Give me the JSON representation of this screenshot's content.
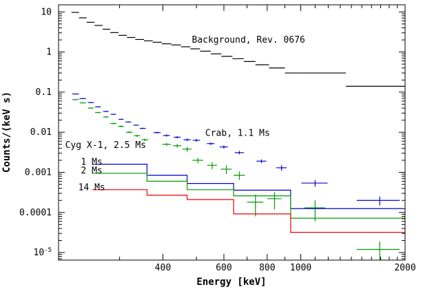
{
  "chart_data": {
    "type": "line",
    "xlabel": "Energy [keV]",
    "ylabel": "Counts/(keV s)",
    "xscale": "log",
    "yscale": "log",
    "xlim": [
      200,
      2000
    ],
    "ylim": [
      6.5e-06,
      15
    ],
    "grid": false,
    "x_ticks": [
      {
        "value": 400,
        "label": "400"
      },
      {
        "value": 600,
        "label": "600"
      },
      {
        "value": 800,
        "label": "800"
      },
      {
        "value": 1000,
        "label": "1000"
      },
      {
        "value": 2000,
        "label": "2000"
      }
    ],
    "y_ticks": [
      {
        "value": 10,
        "label": "10"
      },
      {
        "value": 1,
        "label": "1"
      },
      {
        "value": 0.1,
        "label": "0.1"
      },
      {
        "value": 0.01,
        "label": "0.01"
      },
      {
        "value": 0.001,
        "label": "0.001"
      },
      {
        "value": 0.0001,
        "label": "0.0001"
      },
      {
        "value": 1e-05,
        "label": "10",
        "exp": "-5"
      }
    ],
    "annotations": [
      {
        "text": "Background, Rev. 0676",
        "x": 485,
        "y": 2.0,
        "color": "#000000"
      },
      {
        "text": "Crab, 1.1 Ms",
        "x": 530,
        "y": 0.0095,
        "color": "#000000"
      },
      {
        "text": "Cyg X-1, 2.5 Ms",
        "x": 209,
        "y": 0.0048,
        "color": "#000000"
      },
      {
        "text": "1 Ms",
        "x": 232,
        "y": 0.0018,
        "color": "#000000"
      },
      {
        "text": "2 Ms",
        "x": 232,
        "y": 0.0011,
        "color": "#000000"
      },
      {
        "text": "14 Ms",
        "x": 228,
        "y": 0.00042,
        "color": "#000000"
      }
    ],
    "series": [
      {
        "style": "bins",
        "color": "#000000",
        "bins": [
          [
            218,
            229,
            9.7
          ],
          [
            229,
            241,
            7.1
          ],
          [
            241,
            254,
            5.5
          ],
          [
            254,
            268,
            4.6
          ],
          [
            268,
            282,
            3.7
          ],
          [
            282,
            298,
            3.05
          ],
          [
            298,
            315,
            2.6
          ],
          [
            315,
            333,
            2.3
          ],
          [
            333,
            353,
            2.05
          ],
          [
            353,
            374,
            1.9
          ],
          [
            374,
            397,
            1.75
          ],
          [
            397,
            423,
            1.6
          ],
          [
            423,
            451,
            1.5
          ],
          [
            451,
            480,
            1.35
          ],
          [
            480,
            512,
            1.2
          ],
          [
            512,
            550,
            1.05
          ],
          [
            550,
            590,
            0.9
          ],
          [
            590,
            635,
            0.78
          ],
          [
            635,
            685,
            0.68
          ],
          [
            685,
            740,
            0.58
          ],
          [
            740,
            810,
            0.48
          ],
          [
            810,
            900,
            0.4
          ],
          [
            900,
            1000,
            0.3
          ],
          [
            1000,
            1350,
            0.3
          ],
          [
            1350,
            2000,
            0.14
          ]
        ]
      },
      {
        "style": "errorbars",
        "color": "#0000cc",
        "points": [
          [
            224,
            0.09,
            5,
            0.002
          ],
          [
            235,
            0.069,
            5,
            0.002
          ],
          [
            248,
            0.055,
            5,
            0.0015
          ],
          [
            260,
            0.043,
            5,
            0.0012
          ],
          [
            274,
            0.033,
            5,
            0.001
          ],
          [
            288,
            0.028,
            5,
            0.0008
          ],
          [
            303,
            0.021,
            5,
            0.0006
          ],
          [
            318,
            0.018,
            6,
            0.0005
          ],
          [
            335,
            0.015,
            6,
            0.0004
          ],
          [
            350,
            0.0125,
            7,
            0.0004
          ],
          [
            385,
            0.0098,
            9,
            0.0005
          ],
          [
            410,
            0.0083,
            9,
            0.0005
          ],
          [
            440,
            0.0075,
            10,
            0.0005
          ],
          [
            470,
            0.0065,
            11,
            0.0005
          ],
          [
            500,
            0.0063,
            12,
            0.0005
          ],
          [
            550,
            0.0052,
            14,
            0.0004
          ],
          [
            600,
            0.0043,
            16,
            0.0004
          ],
          [
            665,
            0.0031,
            20,
            0.0003
          ],
          [
            770,
            0.0019,
            25,
            0.0002
          ],
          [
            880,
            0.0013,
            30,
            0.0002
          ],
          [
            1100,
            0.00054,
            95,
            0.0001
          ],
          [
            1690,
            0.0002,
            240,
            5e-05
          ]
        ]
      },
      {
        "style": "errorbars",
        "color": "#009900",
        "points": [
          [
            224,
            0.065,
            5,
            0.002
          ],
          [
            235,
            0.054,
            5,
            0.0018
          ],
          [
            248,
            0.04,
            5,
            0.0015
          ],
          [
            260,
            0.031,
            5,
            0.0012
          ],
          [
            274,
            0.024,
            5,
            0.001
          ],
          [
            288,
            0.0165,
            6,
            0.0008
          ],
          [
            303,
            0.014,
            6,
            0.0007
          ],
          [
            320,
            0.01,
            7,
            0.0006
          ],
          [
            337,
            0.0082,
            7,
            0.0005
          ],
          [
            355,
            0.0065,
            8,
            0.0005
          ],
          [
            410,
            0.005,
            12,
            0.0004
          ],
          [
            440,
            0.0046,
            12,
            0.0005
          ],
          [
            470,
            0.0038,
            14,
            0.0005
          ],
          [
            505,
            0.002,
            18,
            0.0003
          ],
          [
            555,
            0.0015,
            18,
            0.0003
          ],
          [
            610,
            0.0012,
            22,
            0.0003
          ],
          [
            665,
            0.00085,
            25,
            0.0002
          ],
          [
            740,
            0.00018,
            40,
            0.0001
          ],
          [
            840,
            0.00022,
            40,
            0.0001
          ],
          [
            1100,
            0.00013,
            75,
            7e-05
          ],
          [
            1690,
            1.2e-05,
            240,
            7e-06
          ]
        ]
      },
      {
        "style": "steps",
        "color": "#0000cc",
        "bins": [
          [
            250,
            360,
            0.0016
          ],
          [
            360,
            470,
            0.00085
          ],
          [
            470,
            640,
            0.00053
          ],
          [
            640,
            935,
            0.00036
          ],
          [
            935,
            2000,
            0.000125
          ]
        ]
      },
      {
        "style": "steps",
        "color": "#009900",
        "bins": [
          [
            250,
            360,
            0.00095
          ],
          [
            360,
            470,
            0.0006
          ],
          [
            470,
            640,
            0.00037
          ],
          [
            640,
            935,
            0.00026
          ],
          [
            935,
            2000,
            7.2e-05
          ]
        ]
      },
      {
        "style": "steps",
        "color": "#ee0000",
        "bins": [
          [
            250,
            360,
            0.00037
          ],
          [
            360,
            470,
            0.00027
          ],
          [
            470,
            640,
            0.00021
          ],
          [
            640,
            935,
            9.2e-05
          ],
          [
            935,
            2000,
            3.2e-05
          ]
        ]
      }
    ]
  }
}
